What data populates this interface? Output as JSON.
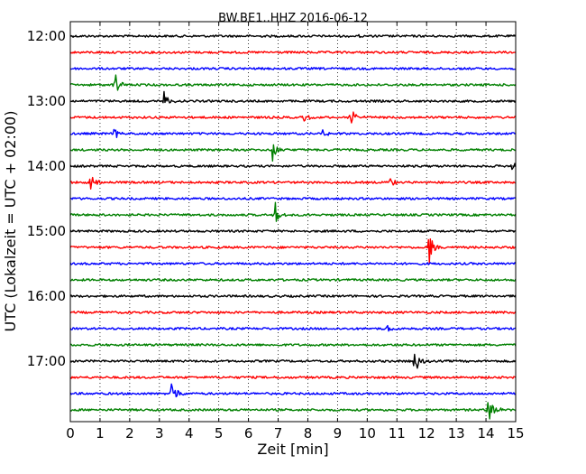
{
  "chart_data": {
    "type": "line",
    "title": "BW.BE1..HHZ 2016-06-12",
    "xlabel": "Zeit  [min]",
    "ylabel": "UTC (Lokalzeit = UTC + 02:00)",
    "xlim": [
      0,
      15
    ],
    "x_ticks": [
      "0",
      "1",
      "2",
      "3",
      "4",
      "5",
      "6",
      "7",
      "8",
      "9",
      "10",
      "11",
      "12",
      "13",
      "14",
      "15"
    ],
    "y_ticks": [
      {
        "label": "12:00",
        "trace": 0
      },
      {
        "label": "13:00",
        "trace": 4
      },
      {
        "label": "14:00",
        "trace": 8
      },
      {
        "label": "15:00",
        "trace": 12
      },
      {
        "label": "16:00",
        "trace": 16
      },
      {
        "label": "17:00",
        "trace": 20
      }
    ],
    "grid": "x dotted",
    "trace_interval_min": 15,
    "color_cycle": [
      "#000000",
      "#ff0000",
      "#0000ff",
      "#008000"
    ],
    "traces": [
      {
        "start": "12:00",
        "color": "#000000",
        "events": [
          {
            "t": 9.7,
            "amp": 0.04
          }
        ]
      },
      {
        "start": "12:15",
        "color": "#ff0000",
        "events": []
      },
      {
        "start": "12:30",
        "color": "#0000ff",
        "events": []
      },
      {
        "start": "12:45",
        "color": "#008000",
        "events": [
          {
            "t": 1.5,
            "amp": 0.7
          }
        ]
      },
      {
        "start": "13:00",
        "color": "#000000",
        "events": [
          {
            "t": 3.15,
            "amp": 0.6
          }
        ]
      },
      {
        "start": "13:15",
        "color": "#ff0000",
        "events": [
          {
            "t": 7.9,
            "amp": 0.25
          },
          {
            "t": 9.4,
            "amp": 0.85
          }
        ]
      },
      {
        "start": "13:30",
        "color": "#0000ff",
        "events": [
          {
            "t": 1.5,
            "amp": 0.3
          },
          {
            "t": 8.5,
            "amp": 0.25
          }
        ]
      },
      {
        "start": "13:45",
        "color": "#008000",
        "events": [
          {
            "t": 6.8,
            "amp": 1.0
          }
        ]
      },
      {
        "start": "14:00",
        "color": "#000000",
        "events": [
          {
            "t": 14.9,
            "amp": 0.3
          }
        ]
      },
      {
        "start": "14:15",
        "color": "#ff0000",
        "events": [
          {
            "t": 0.7,
            "amp": 0.55
          },
          {
            "t": 10.8,
            "amp": 0.35
          }
        ]
      },
      {
        "start": "14:30",
        "color": "#0000ff",
        "events": []
      },
      {
        "start": "14:45",
        "color": "#008000",
        "events": [
          {
            "t": 6.9,
            "amp": 0.75
          }
        ]
      },
      {
        "start": "15:00",
        "color": "#000000",
        "events": []
      },
      {
        "start": "15:15",
        "color": "#ff0000",
        "events": [
          {
            "t": 12.1,
            "amp": 1.0
          }
        ]
      },
      {
        "start": "15:30",
        "color": "#0000ff",
        "events": []
      },
      {
        "start": "15:45",
        "color": "#008000",
        "events": []
      },
      {
        "start": "16:00",
        "color": "#000000",
        "events": []
      },
      {
        "start": "16:15",
        "color": "#ff0000",
        "events": []
      },
      {
        "start": "16:30",
        "color": "#0000ff",
        "events": [
          {
            "t": 10.7,
            "amp": 0.3
          }
        ]
      },
      {
        "start": "16:45",
        "color": "#008000",
        "events": []
      },
      {
        "start": "17:00",
        "color": "#000000",
        "events": [
          {
            "t": 11.6,
            "amp": 0.95
          }
        ]
      },
      {
        "start": "17:15",
        "color": "#ff0000",
        "events": []
      },
      {
        "start": "17:30",
        "color": "#0000ff",
        "events": [
          {
            "t": 3.4,
            "amp": 0.95
          }
        ]
      },
      {
        "start": "17:45",
        "color": "#008000",
        "events": [
          {
            "t": 14.1,
            "amp": 1.1
          }
        ]
      }
    ]
  }
}
